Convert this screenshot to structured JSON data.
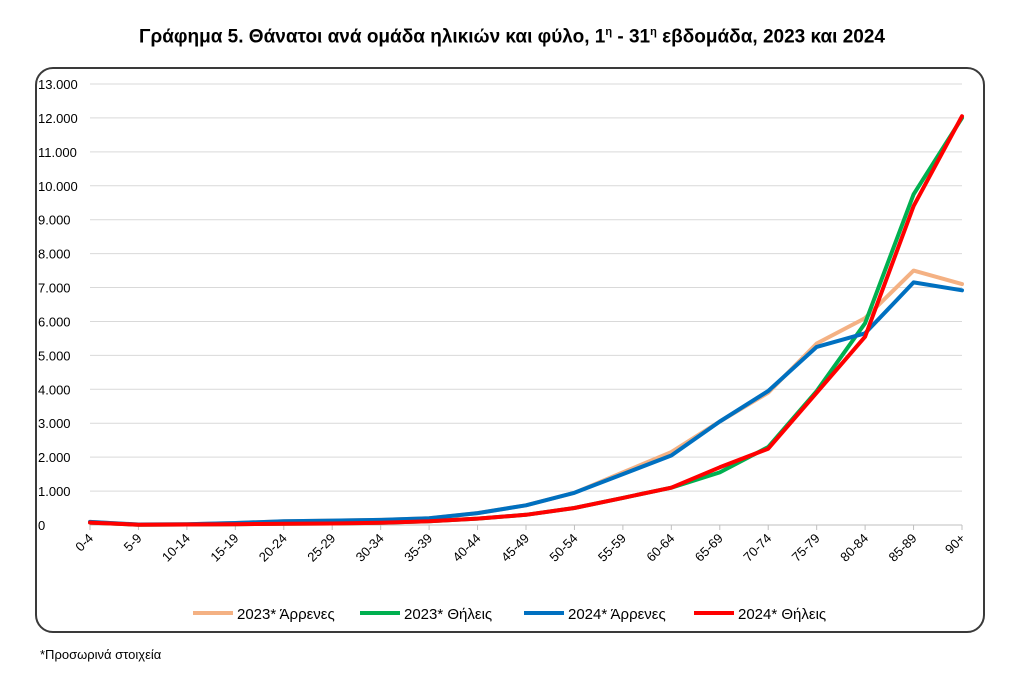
{
  "title_main": "Γράφημα 5. Θάνατοι ανά ομάδα ηλικιών και φύλο, 1",
  "title_sup1": "η",
  "title_mid": " - 31",
  "title_sup2": "η",
  "title_end": " εβδομάδα, 2023 και 2024",
  "footnote": "*Προσωρινά στοιχεία",
  "chart_data": {
    "type": "line",
    "title": "Γράφημα 5. Θάνατοι ανά ομάδα ηλικιών και φύλο, 1η - 31η εβδομάδα, 2023 και 2024",
    "xlabel": "",
    "ylabel": "",
    "ylim": [
      0,
      13000
    ],
    "yticks": [
      0,
      1000,
      2000,
      3000,
      4000,
      5000,
      6000,
      7000,
      8000,
      9000,
      10000,
      11000,
      12000,
      13000
    ],
    "ytick_labels": [
      "0",
      "1.000",
      "2.000",
      "3.000",
      "4.000",
      "5.000",
      "6.000",
      "7.000",
      "8.000",
      "9.000",
      "10.000",
      "11.000",
      "12.000",
      "13.000"
    ],
    "grid": true,
    "legend_position": "bottom",
    "categories": [
      "0-4",
      "5-9",
      "10-14",
      "15-19",
      "20-24",
      "25-29",
      "30-34",
      "35-39",
      "40-44",
      "45-49",
      "50-54",
      "55-59",
      "60-64",
      "65-69",
      "70-74",
      "75-79",
      "80-84",
      "85-89",
      "90+"
    ],
    "series": [
      {
        "name": "2023* Άρρενες",
        "color": "#f4b183",
        "values": [
          90,
          15,
          25,
          60,
          110,
          130,
          150,
          200,
          350,
          580,
          950,
          1550,
          2150,
          3050,
          3900,
          5350,
          6100,
          7500,
          7100
        ]
      },
      {
        "name": "2023* Θήλεις",
        "color": "#00b050",
        "values": [
          70,
          10,
          15,
          25,
          35,
          45,
          65,
          110,
          190,
          300,
          500,
          800,
          1100,
          1550,
          2300,
          3950,
          5950,
          9750,
          12000
        ]
      },
      {
        "name": "2024* Άρρενες",
        "color": "#0070c0",
        "values": [
          90,
          15,
          25,
          60,
          110,
          130,
          150,
          200,
          350,
          580,
          950,
          1500,
          2050,
          3050,
          3950,
          5250,
          5650,
          7150,
          6920
        ]
      },
      {
        "name": "2024* Θήλεις",
        "color": "#ff0000",
        "values": [
          70,
          10,
          15,
          25,
          35,
          45,
          65,
          110,
          190,
          300,
          500,
          800,
          1100,
          1700,
          2250,
          3900,
          5550,
          9400,
          12050
        ]
      }
    ]
  }
}
